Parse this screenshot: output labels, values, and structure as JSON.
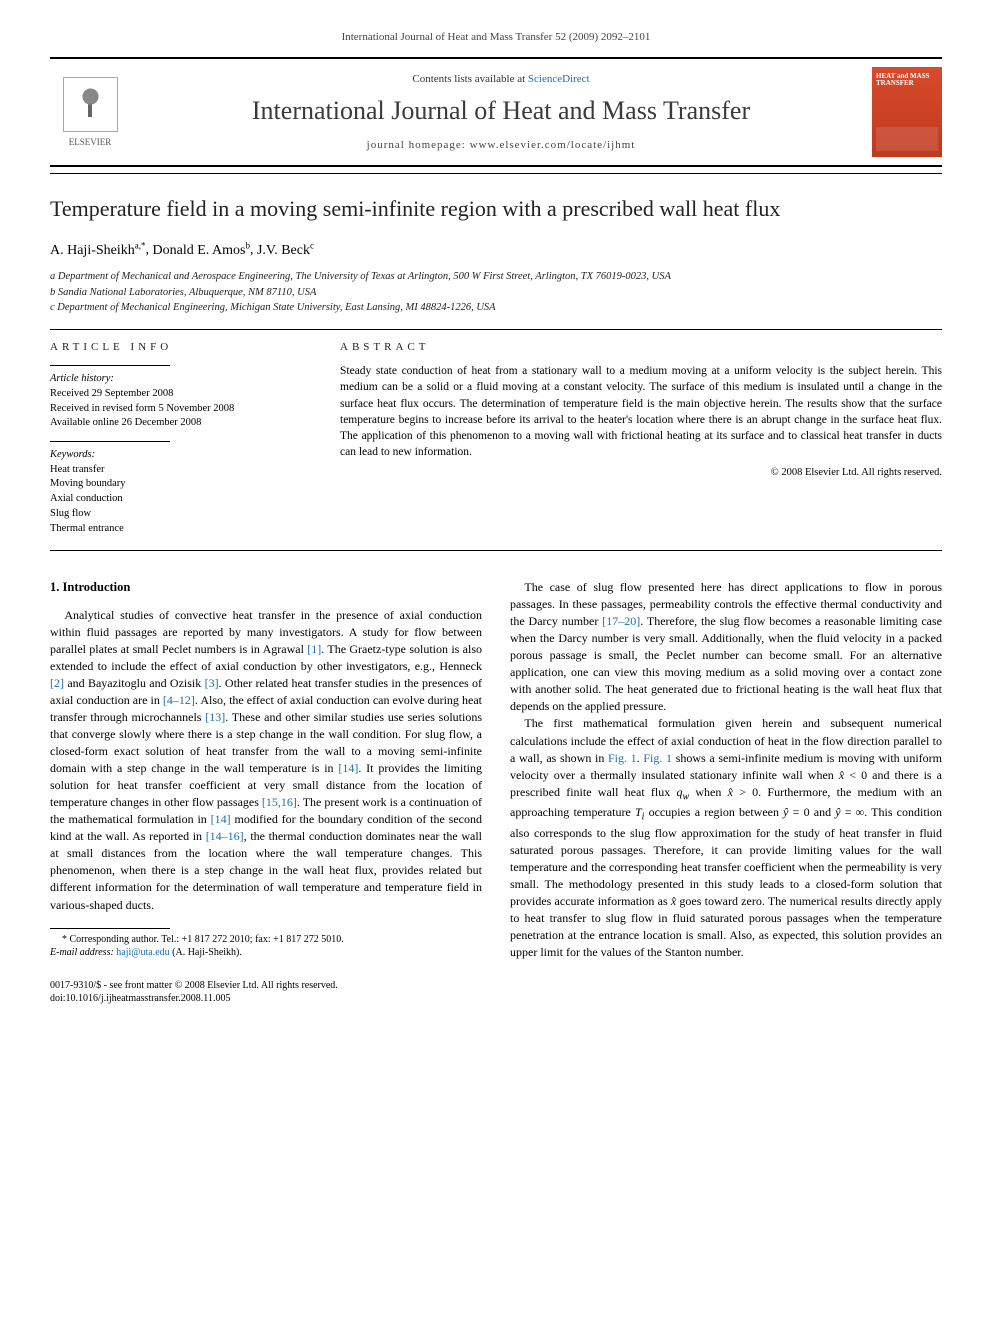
{
  "page_header": "International Journal of Heat and Mass Transfer 52 (2009) 2092–2101",
  "banner": {
    "publisher": "ELSEVIER",
    "contents_line_prefix": "Contents lists available at ",
    "contents_link": "ScienceDirect",
    "journal_name": "International Journal of Heat and Mass Transfer",
    "homepage_label": "journal homepage: ",
    "homepage_url": "www.elsevier.com/locate/ijhmt",
    "cover_text": "HEAT and MASS TRANSFER"
  },
  "title": "Temperature field in a moving semi-infinite region with a prescribed wall heat flux",
  "authors_html": "A. Haji-Sheikh|a,*|, Donald E. Amos|b|, J.V. Beck|c|",
  "authors": [
    {
      "name": "A. Haji-Sheikh",
      "sup": "a,*"
    },
    {
      "name": "Donald E. Amos",
      "sup": "b"
    },
    {
      "name": "J.V. Beck",
      "sup": "c"
    }
  ],
  "affiliations": [
    "a Department of Mechanical and Aerospace Engineering, The University of Texas at Arlington, 500 W First Street, Arlington, TX 76019-0023, USA",
    "b Sandia National Laboratories, Albuquerque, NM 87110, USA",
    "c Department of Mechanical Engineering, Michigan State University, East Lansing, MI 48824-1226, USA"
  ],
  "article_info": {
    "heading": "ARTICLE INFO",
    "history_head": "Article history:",
    "history": [
      "Received 29 September 2008",
      "Received in revised form 5 November 2008",
      "Available online 26 December 2008"
    ],
    "keywords_head": "Keywords:",
    "keywords": [
      "Heat transfer",
      "Moving boundary",
      "Axial conduction",
      "Slug flow",
      "Thermal entrance"
    ]
  },
  "abstract": {
    "heading": "ABSTRACT",
    "text": "Steady state conduction of heat from a stationary wall to a medium moving at a uniform velocity is the subject herein. This medium can be a solid or a fluid moving at a constant velocity. The surface of this medium is insulated until a change in the surface heat flux occurs. The determination of temperature field is the main objective herein. The results show that the surface temperature begins to increase before its arrival to the heater's location where there is an abrupt change in the surface heat flux. The application of this phenomenon to a moving wall with frictional heating at its surface and to classical heat transfer in ducts can lead to new information.",
    "copyright": "© 2008 Elsevier Ltd. All rights reserved."
  },
  "section1": {
    "heading": "1. Introduction",
    "p1": "Analytical studies of convective heat transfer in the presence of axial conduction within fluid passages are reported by many investigators. A study for flow between parallel plates at small Peclet numbers is in Agrawal [1]. The Graetz-type solution is also extended to include the effect of axial conduction by other investigators, e.g., Henneck [2] and Bayazitoglu and Ozisik [3]. Other related heat transfer studies in the presences of axial conduction are in [4–12]. Also, the effect of axial conduction can evolve during heat transfer through microchannels [13]. These and other similar studies use series solutions that converge slowly where there is a step change in the wall condition. For slug flow, a closed-form exact solution of heat transfer from the wall to a moving semi-infinite domain with a step change in the wall temperature is in [14]. It provides the limiting solution for heat transfer coefficient at very small distance from the location of temperature changes in other flow passages [15,16]. The present work is a continuation of the mathematical formulation in [14] modified for the boundary condition of the second kind at the wall. As reported in [14–16], the thermal conduction dominates near the wall at small distances from the location where the wall temperature changes. This phenomenon, when there is a step change in the wall heat flux, provides related but different information for the determination of wall temperature and temperature field in various-shaped ducts.",
    "p2": "The case of slug flow presented here has direct applications to flow in porous passages. In these passages, permeability controls the effective thermal conductivity and the Darcy number [17–20]. Therefore, the slug flow becomes a reasonable limiting case when the Darcy number is very small. Additionally, when the fluid velocity in a packed porous passage is small, the Peclet number can become small. For an alternative application, one can view this moving medium as a solid moving over a contact zone with another solid. The heat generated due to frictional heating is the wall heat flux that depends on the applied pressure.",
    "p3": "The first mathematical formulation given herein and subsequent numerical calculations include the effect of axial conduction of heat in the flow direction parallel to a wall, as shown in Fig. 1. Fig. 1 shows a semi-infinite medium is moving with uniform velocity over a thermally insulated stationary infinite wall when x̂ < 0 and there is a prescribed finite wall heat flux qw when x̂ > 0. Furthermore, the medium with an approaching temperature Ti occupies a region between ŷ = 0 and ŷ = ∞. This condition also corresponds to the slug flow approximation for the study of heat transfer in fluid saturated porous passages. Therefore, it can provide limiting values for the wall temperature and the corresponding heat transfer coefficient when the permeability is very small. The methodology presented in this study leads to a closed-form solution that provides accurate information as x̂ goes toward zero. The numerical results directly apply to heat transfer to slug flow in fluid saturated porous passages when the temperature penetration at the entrance location is small. Also, as expected, this solution provides an upper limit for the values of the Stanton number."
  },
  "footnote": {
    "corr": "* Corresponding author. Tel.: +1 817 272 2010; fax: +1 817 272 5010.",
    "email_label": "E-mail address: ",
    "email": "haji@uta.edu",
    "email_suffix": " (A. Haji-Sheikh)."
  },
  "footer": {
    "line1": "0017-9310/$ - see front matter © 2008 Elsevier Ltd. All rights reserved.",
    "line2": "doi:10.1016/j.ijheatmasstransfer.2008.11.005"
  },
  "refs": {
    "r1": "[1]",
    "r2": "[2]",
    "r3": "[3]",
    "r4_12": "[4–12]",
    "r13": "[13]",
    "r14": "[14]",
    "r15_16": "[15,16]",
    "r14b": "[14]",
    "r14_16": "[14–16]",
    "r17_20": "[17–20]",
    "fig1a": "Fig. 1",
    "fig1b": "Fig. 1"
  },
  "colors": {
    "link": "#1a6fb3",
    "cover_bg": "#d84a2b",
    "text": "#000000",
    "rule": "#000000"
  }
}
